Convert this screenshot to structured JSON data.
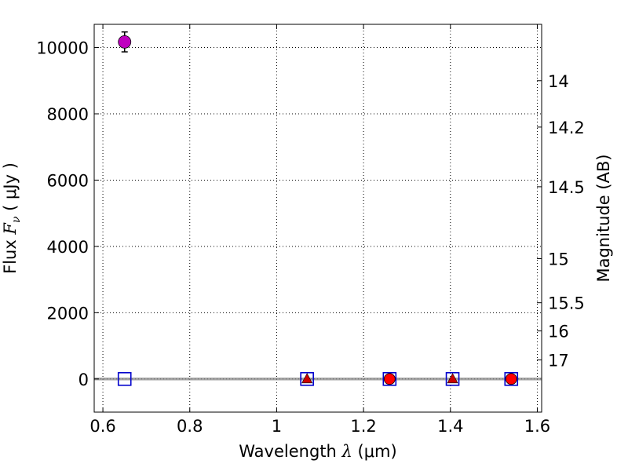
{
  "chart_data": {
    "type": "scatter",
    "xlabel": {
      "prefix": "Wavelength  ",
      "symbol": "λ",
      "suffix": " (μm)"
    },
    "ylabel": {
      "prefix": "Flux  ",
      "symbol": "F",
      "subscript": "ν",
      "suffix": "  ( μJy )"
    },
    "y2label": "Magnitude (AB)",
    "xlim": [
      0.58,
      1.61
    ],
    "ylim": [
      -1000,
      10700
    ],
    "grid": true,
    "x_ticks": [
      {
        "value": 0.6,
        "label": "0.6"
      },
      {
        "value": 0.8,
        "label": "0.8"
      },
      {
        "value": 1.0,
        "label": "1"
      },
      {
        "value": 1.2,
        "label": "1.2"
      },
      {
        "value": 1.4,
        "label": "1.4"
      },
      {
        "value": 1.6,
        "label": "1.6"
      }
    ],
    "y_ticks": [
      {
        "value": 0,
        "label": "0"
      },
      {
        "value": 2000,
        "label": "2000"
      },
      {
        "value": 4000,
        "label": "4000"
      },
      {
        "value": 6000,
        "label": "6000"
      },
      {
        "value": 8000,
        "label": "8000"
      },
      {
        "value": 10000,
        "label": "10000"
      }
    ],
    "y2_ticks": [
      {
        "flux": 9000,
        "label": "14"
      },
      {
        "flux": 7600,
        "label": "14.2"
      },
      {
        "flux": 5800,
        "label": "14.5"
      },
      {
        "flux": 3630,
        "label": "15"
      },
      {
        "flux": 2300,
        "label": "15.5"
      },
      {
        "flux": 1450,
        "label": "16"
      },
      {
        "flux": 575,
        "label": "17"
      }
    ],
    "zero_line": 0,
    "series": [
      {
        "name": "magenta-circle",
        "marker": "circle",
        "color": "#bf00bf",
        "filled": true,
        "points": [
          {
            "x": 0.65,
            "y": 10170,
            "err": 300
          }
        ]
      },
      {
        "name": "blue-square",
        "marker": "square",
        "color": "#0000cc",
        "filled": false,
        "points": [
          {
            "x": 0.65,
            "y": 0
          },
          {
            "x": 1.07,
            "y": 0
          },
          {
            "x": 1.26,
            "y": 0
          },
          {
            "x": 1.405,
            "y": 0
          },
          {
            "x": 1.54,
            "y": 0
          }
        ]
      },
      {
        "name": "red-triangle",
        "marker": "triangle",
        "color": "#cc0000",
        "filled": true,
        "points": [
          {
            "x": 1.07,
            "y": 0
          },
          {
            "x": 1.405,
            "y": 0
          }
        ]
      },
      {
        "name": "red-circle",
        "marker": "circle",
        "color": "#ff0000",
        "filled": true,
        "points": [
          {
            "x": 1.26,
            "y": 0
          },
          {
            "x": 1.54,
            "y": 0
          }
        ]
      }
    ]
  }
}
